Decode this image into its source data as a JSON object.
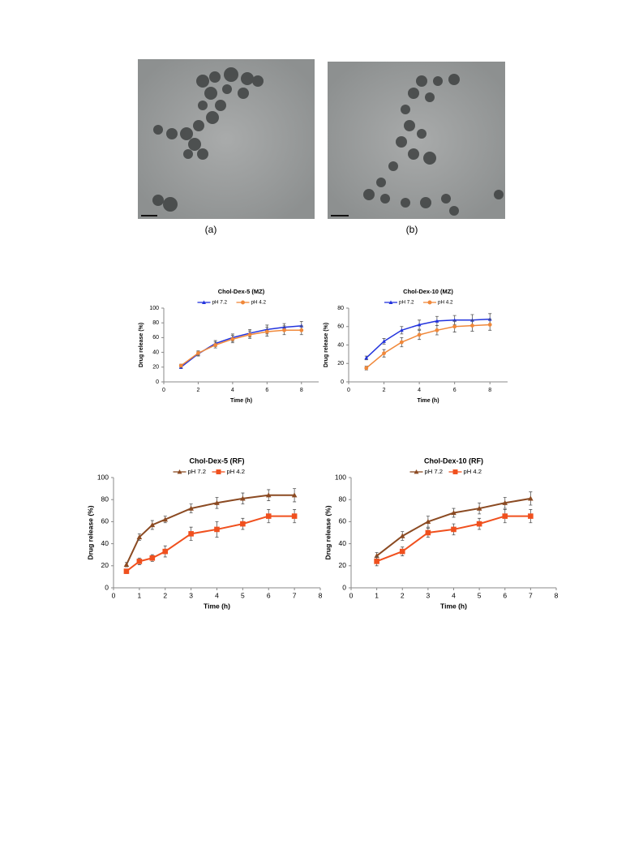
{
  "images": [
    {
      "label": "(a)"
    },
    {
      "label": "(b)"
    }
  ],
  "chart_data": [
    {
      "type": "line",
      "title": "Chol-Dex-5 (MZ)",
      "x_label": "Time (h)",
      "y_label": "Drug release (%)",
      "x": [
        1,
        2,
        3,
        4,
        5,
        6,
        7,
        8
      ],
      "xlim": [
        0,
        9
      ],
      "xticks": [
        0,
        2,
        4,
        6,
        8
      ],
      "ylim": [
        0,
        100
      ],
      "yticks": [
        0,
        20,
        40,
        60,
        80,
        100
      ],
      "series": [
        {
          "name": "pH 7.2",
          "color": "#2233dd",
          "marker": "triangle",
          "values": [
            20,
            38,
            52,
            60,
            66,
            71,
            74,
            76
          ],
          "errors": [
            2,
            3,
            4,
            5,
            5,
            6,
            5,
            6
          ]
        },
        {
          "name": "pH 4.2",
          "color": "#f0883a",
          "marker": "circle",
          "values": [
            22,
            39,
            50,
            58,
            64,
            68,
            70,
            70
          ],
          "errors": [
            2,
            3,
            4,
            5,
            5,
            6,
            6,
            6
          ]
        }
      ]
    },
    {
      "type": "line",
      "title": "Chol-Dex-10 (MZ)",
      "x_label": "Time (h)",
      "y_label": "Drug release (%)",
      "x": [
        1,
        2,
        3,
        4,
        5,
        6,
        7,
        8
      ],
      "xlim": [
        0,
        9
      ],
      "xticks": [
        0,
        2,
        4,
        6,
        8
      ],
      "ylim": [
        0,
        80
      ],
      "yticks": [
        0,
        20,
        40,
        60,
        80
      ],
      "series": [
        {
          "name": "pH 7.2",
          "color": "#2233dd",
          "marker": "triangle",
          "values": [
            26,
            44,
            56,
            62,
            66,
            67,
            67,
            68
          ],
          "errors": [
            2,
            3,
            4,
            5,
            5,
            5,
            6,
            6
          ]
        },
        {
          "name": "pH 4.2",
          "color": "#f0883a",
          "marker": "circle",
          "values": [
            15,
            31,
            43,
            51,
            56,
            60,
            61,
            62
          ],
          "errors": [
            2,
            4,
            5,
            5,
            5,
            6,
            6,
            6
          ]
        }
      ]
    },
    {
      "type": "line",
      "title": "Chol-Dex-5 (RF)",
      "x_label": "Time (h)",
      "y_label": "Drug release (%)",
      "x": [
        0.5,
        1,
        1.5,
        2,
        3,
        4,
        5,
        6,
        7
      ],
      "xlim": [
        0,
        8
      ],
      "xticks": [
        0,
        1,
        2,
        3,
        4,
        5,
        6,
        7,
        8
      ],
      "ylim": [
        0,
        100
      ],
      "yticks": [
        0,
        20,
        40,
        60,
        80,
        100
      ],
      "series": [
        {
          "name": "pH 7.2",
          "color": "#8b4a22",
          "marker": "triangle",
          "values": [
            21,
            46,
            57,
            62,
            72,
            77,
            81,
            84,
            84
          ],
          "errors": [
            2,
            3,
            4,
            3,
            4,
            5,
            5,
            5,
            6
          ]
        },
        {
          "name": "pH 4.2",
          "color": "#f0501e",
          "marker": "square",
          "values": [
            15,
            24,
            27,
            33,
            49,
            53,
            58,
            65,
            65
          ],
          "errors": [
            2,
            3,
            3,
            5,
            6,
            7,
            5,
            6,
            6
          ]
        }
      ]
    },
    {
      "type": "line",
      "title": "Chol-Dex-10 (RF)",
      "x_label": "Time (h)",
      "y_label": "Drug release (%)",
      "x": [
        1,
        2,
        3,
        4,
        5,
        6,
        7
      ],
      "xlim": [
        0,
        8
      ],
      "xticks": [
        0,
        1,
        2,
        3,
        4,
        5,
        6,
        7,
        8
      ],
      "ylim": [
        0,
        100
      ],
      "yticks": [
        0,
        20,
        40,
        60,
        80,
        100
      ],
      "series": [
        {
          "name": "pH 7.2",
          "color": "#8b4a22",
          "marker": "triangle",
          "values": [
            29,
            47,
            60,
            68,
            72,
            77,
            81
          ],
          "errors": [
            3,
            4,
            5,
            4,
            5,
            5,
            6
          ]
        },
        {
          "name": "pH 4.2",
          "color": "#f0501e",
          "marker": "square",
          "values": [
            24,
            33,
            50,
            53,
            58,
            65,
            65
          ],
          "errors": [
            4,
            4,
            4,
            5,
            5,
            6,
            6
          ]
        }
      ]
    }
  ]
}
